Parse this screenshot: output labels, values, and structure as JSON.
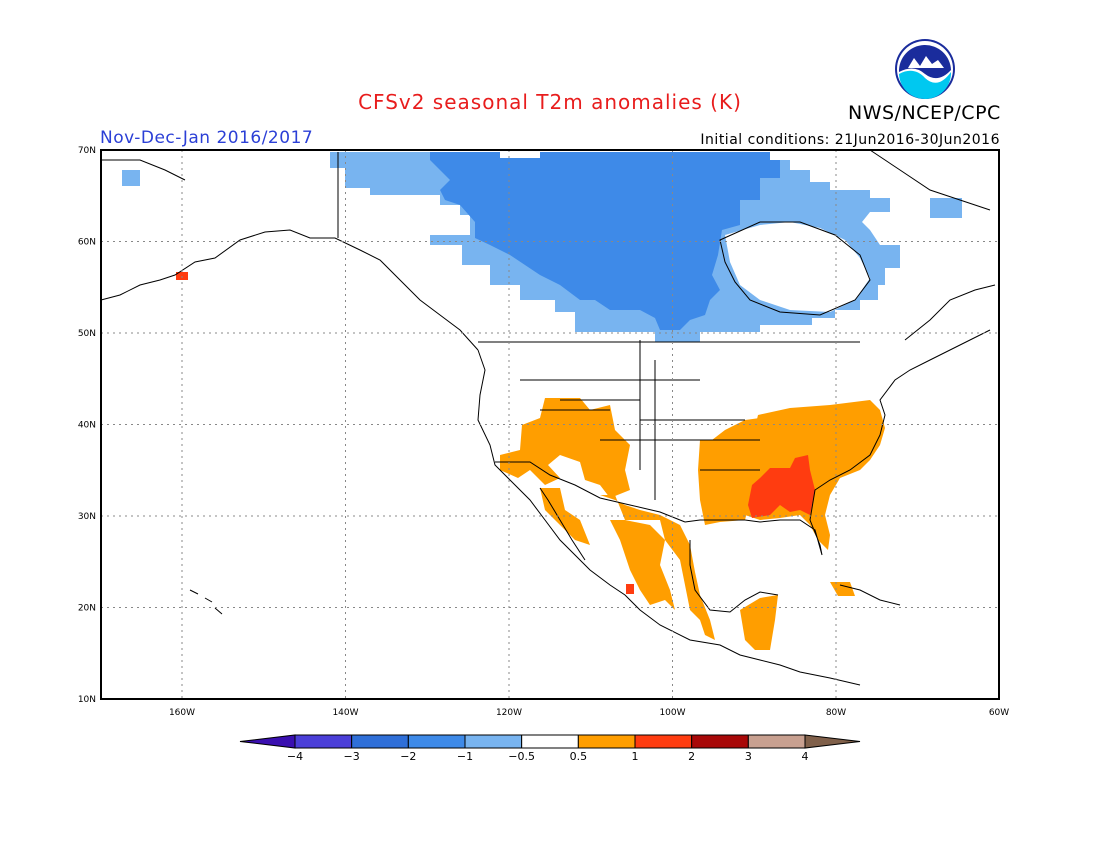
{
  "header": {
    "title": "CFSv2 seasonal T2m anomalies (K)",
    "agency": "NWS/NCEP/CPC",
    "period": "Nov-Dec-Jan 2016/2017",
    "initial_conditions": "Initial conditions: 21Jun2016-30Jun2016",
    "logo_text": "NOAA"
  },
  "map": {
    "lat_labels": [
      "70N",
      "60N",
      "50N",
      "40N",
      "30N",
      "20N",
      "10N"
    ],
    "lon_labels": [
      "160W",
      "140W",
      "120W",
      "100W",
      "80W",
      "60W"
    ],
    "anomalies": {
      "cold_northern_canada": "-1 to -0.5",
      "warm_southwest_us_mexico": "0.5 to 1",
      "warm_southeast_us": "0.5 to 2",
      "hot_gulf_states": "1 to 2"
    }
  },
  "colorbar": {
    "labels": [
      "-4",
      "-3",
      "-2",
      "-1",
      "-0.5",
      "0.5",
      "1",
      "2",
      "3",
      "4"
    ],
    "colors": [
      "#3a0fb0",
      "#4b3fd8",
      "#2f6fd8",
      "#3e8ae8",
      "#78b4f0",
      "#ffffff",
      "#ff9e00",
      "#ff3c10",
      "#a80808",
      "#c8a090",
      "#80604a"
    ]
  },
  "colors": {
    "title": "#e81d1d",
    "period": "#2b3fd6",
    "light_blue": "#78b4f0",
    "mid_blue": "#3e8ae8",
    "orange": "#ff9e00",
    "red": "#ff3c10"
  }
}
